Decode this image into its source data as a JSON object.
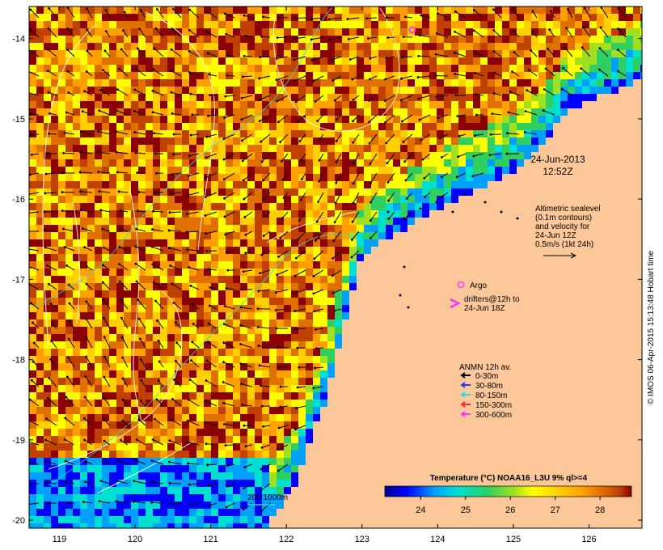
{
  "title": "24-Jun-2013 12:52Z",
  "datetime": {
    "date": "24-Jun-2013",
    "time": "12:52Z"
  },
  "altimetry_note": [
    "Altimetric sealevel",
    "(0.1m contours)",
    "and velocity for",
    "24-Jun 12Z",
    "0.5m/s (1kt 24h)"
  ],
  "argo_label": "Argo",
  "drifters_note": [
    "drifters@12h to",
    "24-Jun 18Z"
  ],
  "anmn_legend": {
    "title": "ANMN 12h av.",
    "items": [
      {
        "label": "0-30m",
        "color": "#000000"
      },
      {
        "label": "30-80m",
        "color": "#1f3fff"
      },
      {
        "label": "80-150m",
        "color": "#36d6e0"
      },
      {
        "label": "150-300m",
        "color": "#ff2a2a"
      },
      {
        "label": "300-600m",
        "color": "#ff33ff"
      }
    ]
  },
  "bathy_label": "200  1000m",
  "colorbar": {
    "title": "Temperature (°C) NOAA16_L3U 9% ql>=4",
    "min": 23.2,
    "max": 28.7,
    "ticks": [
      "24",
      "25",
      "26",
      "27",
      "28"
    ],
    "tick_values": [
      24,
      25,
      26,
      27,
      28
    ]
  },
  "axes": {
    "x_ticks": [
      "119",
      "120",
      "121",
      "122",
      "123",
      "124",
      "125",
      "126"
    ],
    "y_ticks": [
      "-14",
      "-15",
      "-16",
      "-17",
      "-18",
      "-19",
      "-20"
    ],
    "lon_range": [
      118.6,
      126.7
    ],
    "lat_range": [
      -20.1,
      -13.6
    ]
  },
  "credit": "© IMOS 06-Apr-2015 15:13:48 Hobart time",
  "colors": {
    "land": "#fcc89a",
    "palette": [
      "#00008b",
      "#0000ff",
      "#00a0ff",
      "#00e0d0",
      "#30d060",
      "#a0e020",
      "#ffff00",
      "#ffd000",
      "#ffa000",
      "#e07000",
      "#c04000",
      "#8b0000"
    ]
  }
}
